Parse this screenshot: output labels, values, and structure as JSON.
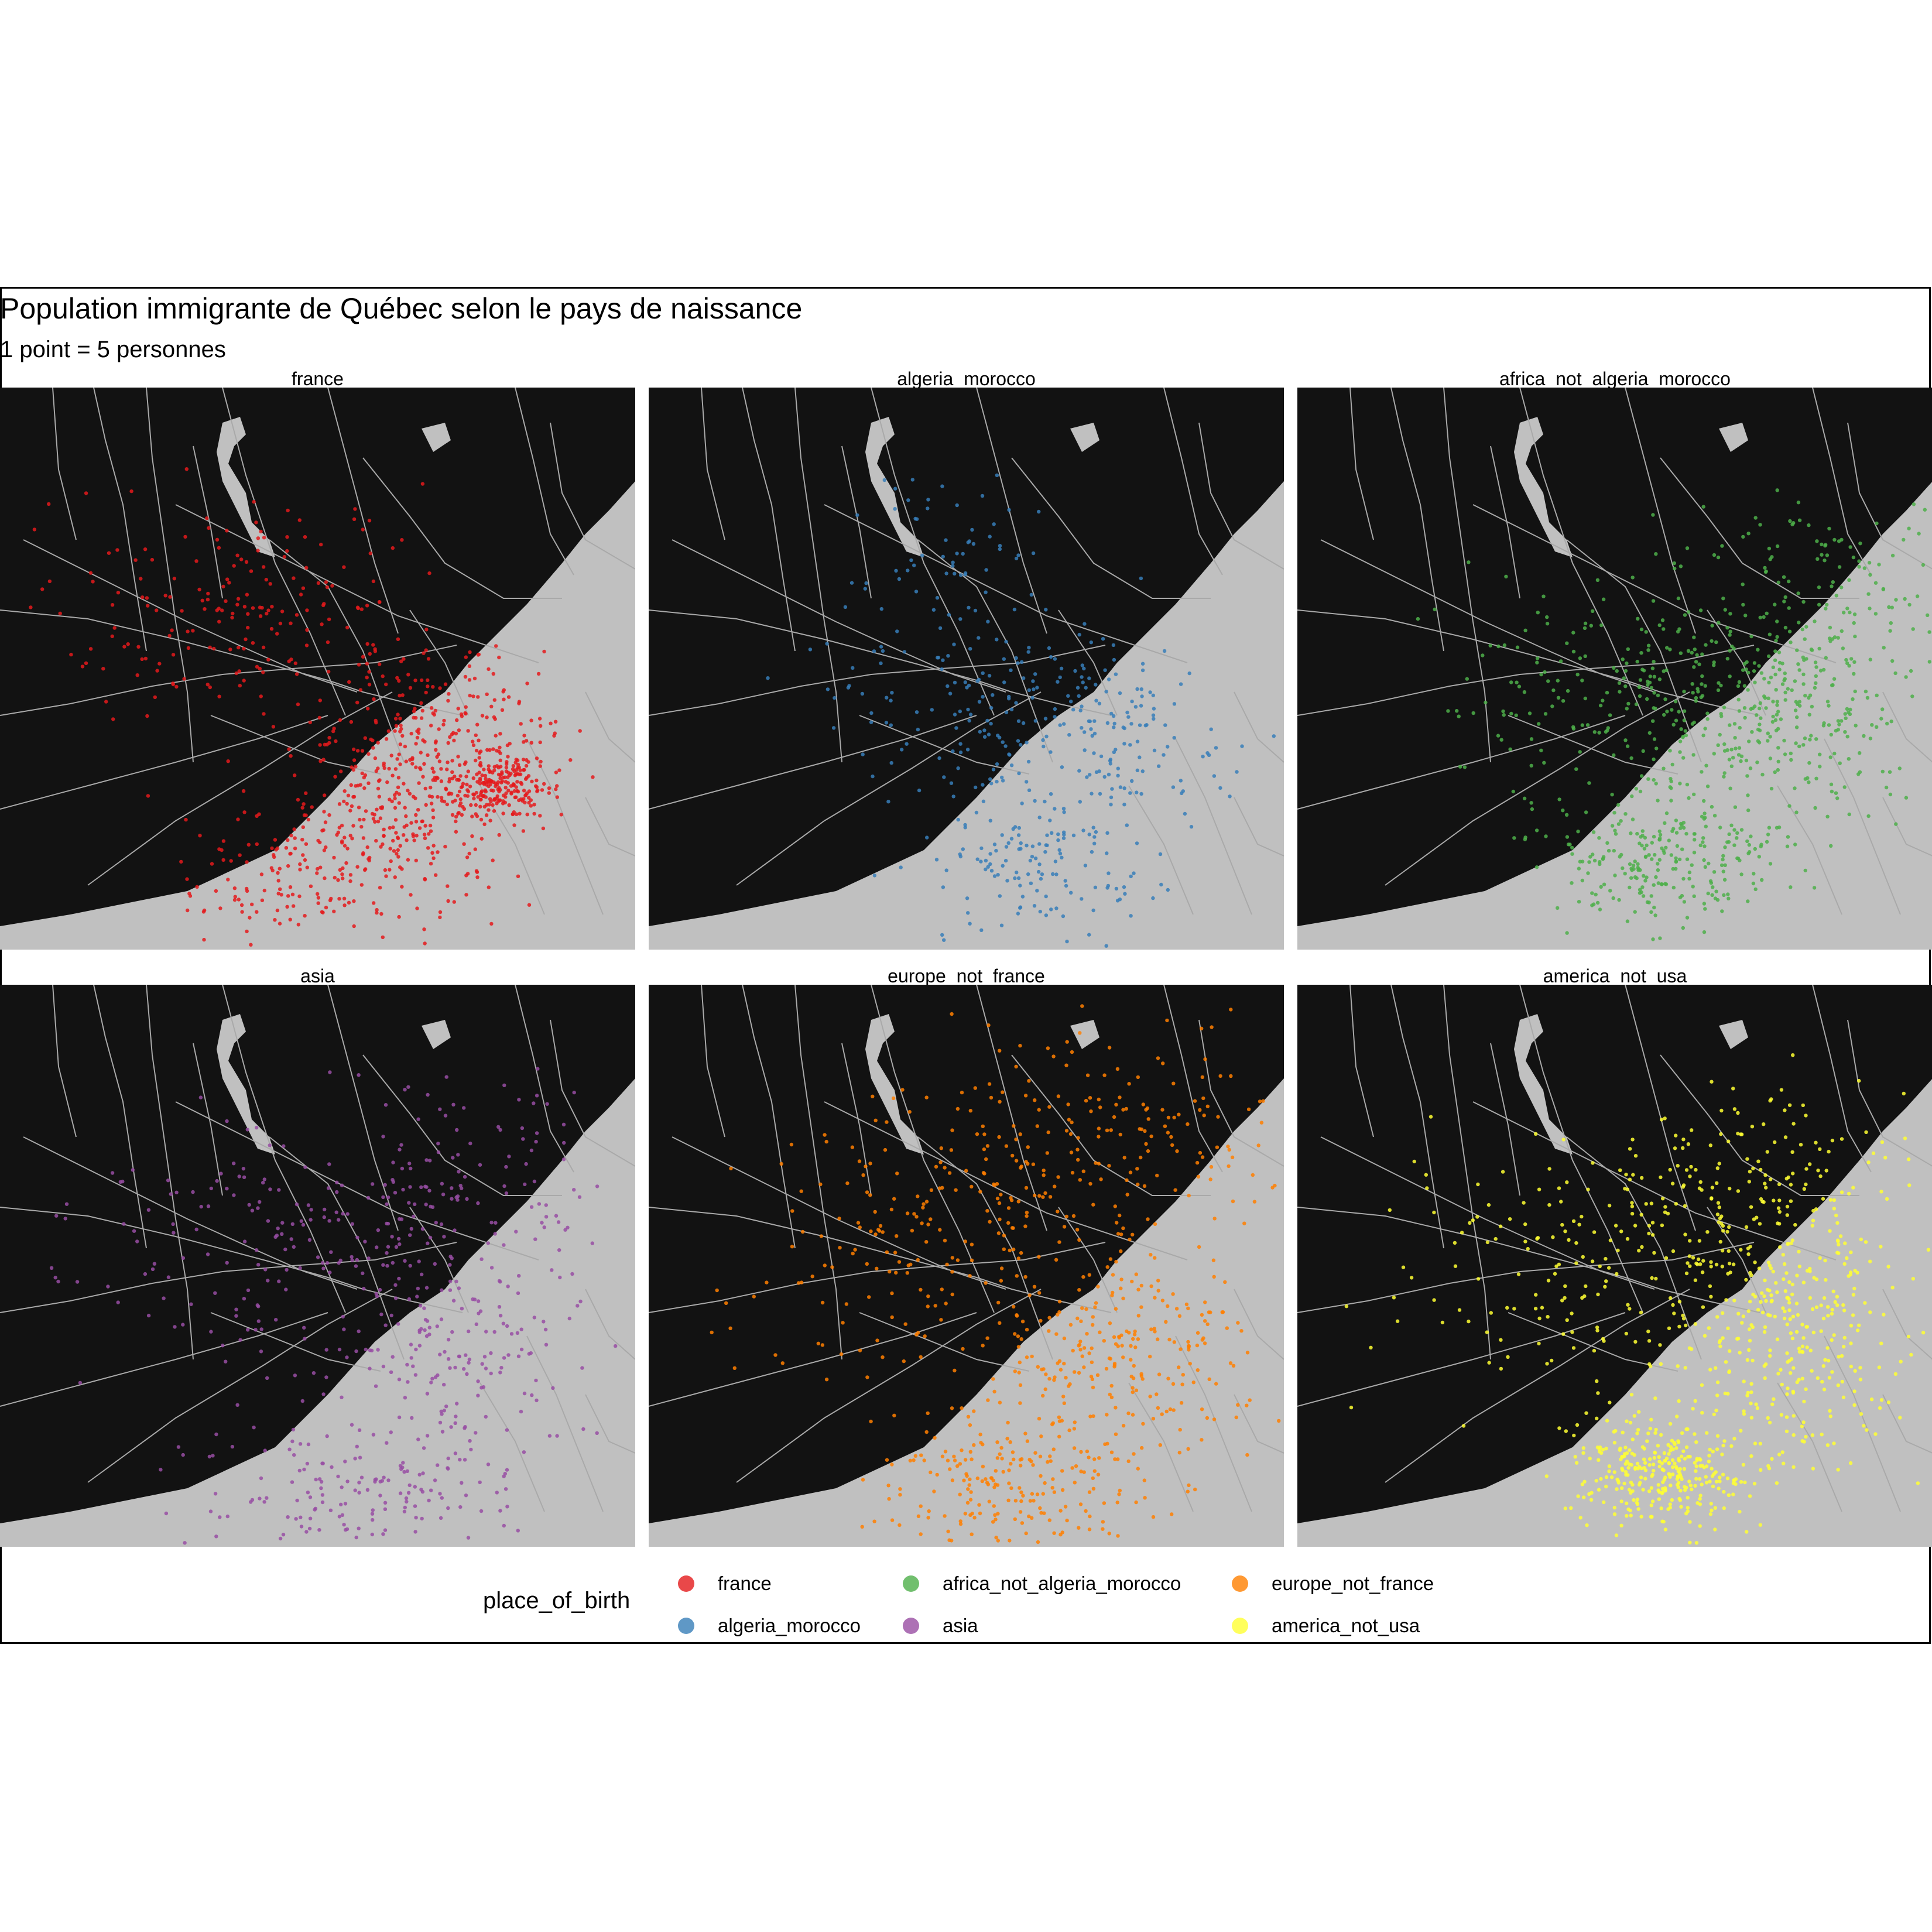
{
  "title": "Population immigrante de Québec selon le pays de naissance",
  "subtitle": "1 point = 5 personnes",
  "legend": {
    "title": "place_of_birth",
    "items": [
      {
        "label": "france",
        "color": "#e41a1c"
      },
      {
        "label": "algeria_morocco",
        "color": "#377eb8"
      },
      {
        "label": "africa_not_algeria_morocco",
        "color": "#4daf4a"
      },
      {
        "label": "asia",
        "color": "#984ea3"
      },
      {
        "label": "europe_not_france",
        "color": "#ff7f00"
      },
      {
        "label": "america_not_usa",
        "color": "#ffff33"
      }
    ]
  },
  "panels": [
    {
      "strip": "france",
      "color": "#e41a1c"
    },
    {
      "strip": "algeria_morocco",
      "color": "#377eb8"
    },
    {
      "strip": "africa_not_algeria_morocco",
      "color": "#4daf4a"
    },
    {
      "strip": "asia",
      "color": "#984ea3"
    },
    {
      "strip": "europe_not_france",
      "color": "#ff7f00"
    },
    {
      "strip": "america_not_usa",
      "color": "#ffff33"
    }
  ],
  "map_style": {
    "background": "#121212",
    "water": "#c0c0c0",
    "roads": "#a9a9a9"
  }
}
